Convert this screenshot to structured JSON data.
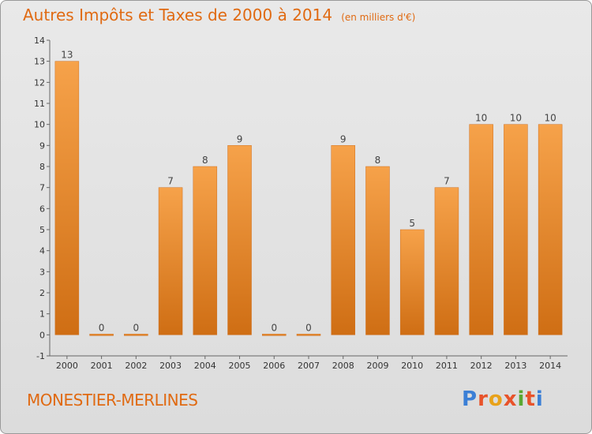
{
  "header": {
    "title": "Autres Impôts et Taxes de 2000 à 2014",
    "unit": "(en milliers d'€)"
  },
  "footer": {
    "commune": "MONESTIER-MERLINES",
    "logo_text": "Proxiti",
    "logo_colors": [
      "#3b7fd6",
      "#e8532a",
      "#e8a21a",
      "#e8532a",
      "#5aa832",
      "#e8532a",
      "#3b7fd6"
    ]
  },
  "chart_data": {
    "type": "bar",
    "title": "Autres Impôts et Taxes de 2000 à 2014",
    "subtitle": "(en milliers d'€)",
    "categories": [
      "2000",
      "2001",
      "2002",
      "2003",
      "2004",
      "2005",
      "2006",
      "2007",
      "2008",
      "2009",
      "2010",
      "2011",
      "2012",
      "2013",
      "2014"
    ],
    "values": [
      13,
      0,
      0,
      7,
      8,
      9,
      0,
      0,
      9,
      8,
      5,
      7,
      10,
      10,
      10
    ],
    "value_labels": [
      "13",
      "0",
      "0",
      "7",
      "8",
      "9",
      "0",
      "0",
      "9",
      "8",
      "5",
      "7",
      "10",
      "10",
      "10"
    ],
    "ylim": [
      -1,
      14
    ],
    "yticks": [
      "-1",
      "0",
      "1",
      "2",
      "3",
      "4",
      "5",
      "6",
      "7",
      "8",
      "9",
      "10",
      "11",
      "12",
      "13",
      "14"
    ],
    "ytick_values": [
      -1,
      0,
      1,
      2,
      3,
      4,
      5,
      6,
      7,
      8,
      9,
      10,
      11,
      12,
      13,
      14
    ],
    "grid": false,
    "bar_color": "#f29a3a"
  }
}
